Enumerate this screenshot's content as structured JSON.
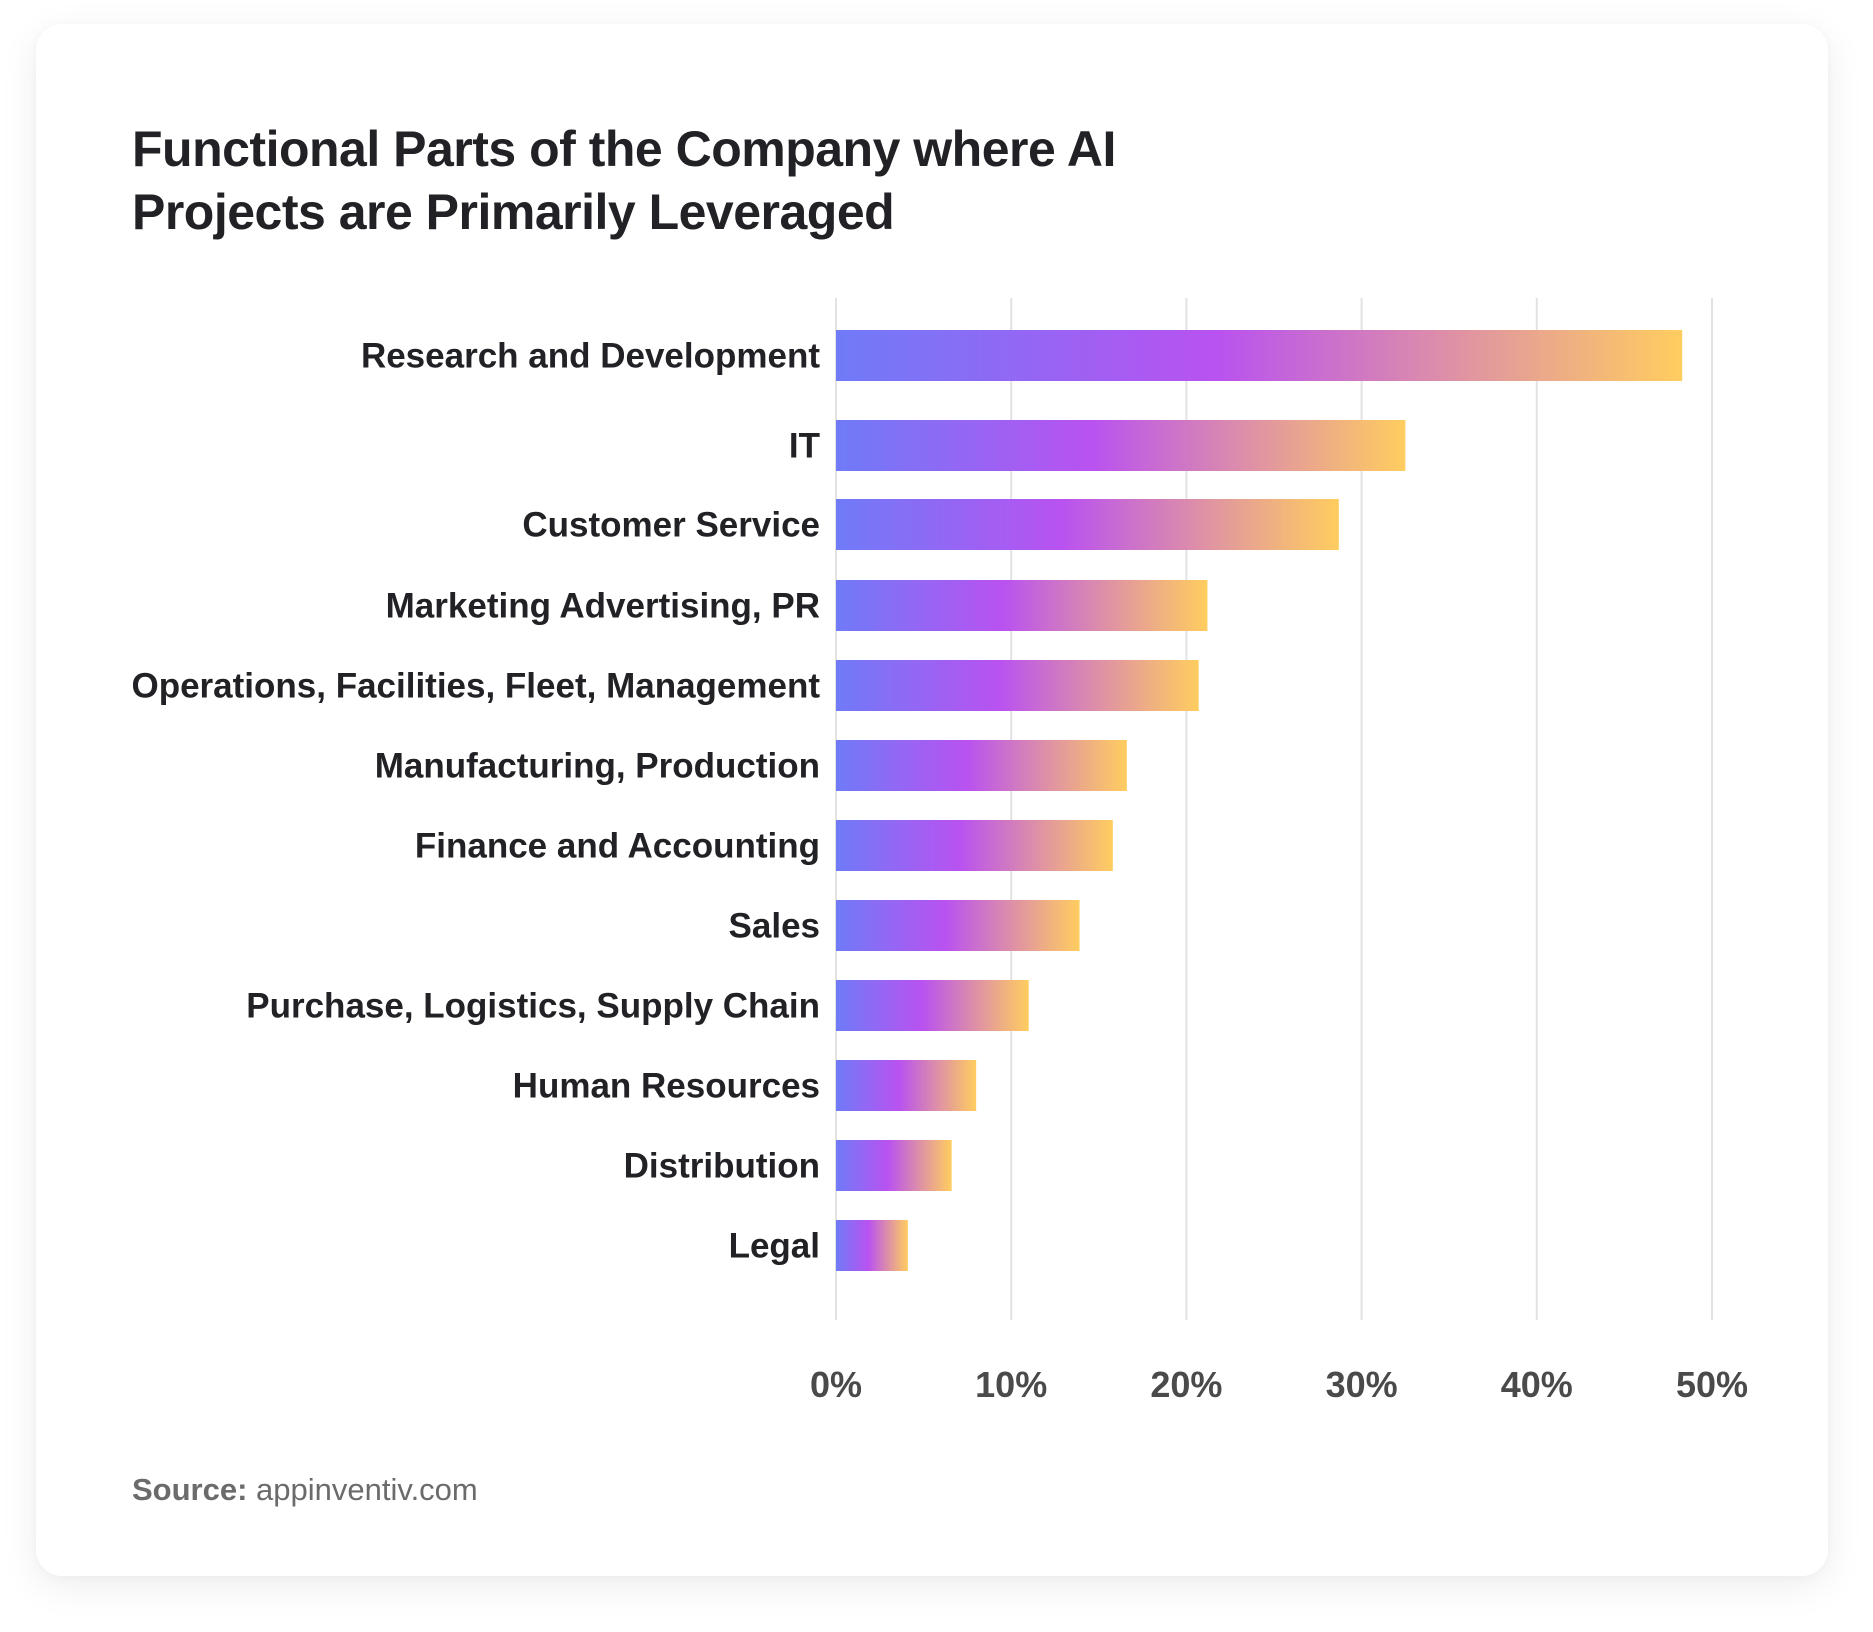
{
  "card": {
    "title_lines": [
      "Functional Parts of the Company where AI",
      "Projects are Primarily Leveraged"
    ],
    "source_label": "Source:",
    "source_value": " appinventiv.com"
  },
  "colors": {
    "gradient_start": "#6f7bf7",
    "gradient_mid": "#b952f0",
    "gradient_pink": "#dd8fa8",
    "gradient_end": "#ffcd5f",
    "gridline": "#e2e2e2",
    "label_text": "#222226",
    "tick_text": "#4a4a4a"
  },
  "chart_data": {
    "type": "bar",
    "orientation": "horizontal",
    "title": "Functional Parts of the Company where AI Projects are Primarily Leveraged",
    "xlabel": "",
    "ylabel": "",
    "categories": [
      "Research and Development",
      "IT",
      "Customer Service",
      "Marketing Advertising, PR",
      "Operations, Facilities, Fleet, Management",
      "Manufacturing, Production",
      "Finance and Accounting",
      "Sales",
      "Purchase, Logistics, Supply Chain",
      "Human Resources",
      "Distribution",
      "Legal"
    ],
    "values": [
      48.3,
      32.5,
      28.7,
      21.2,
      20.7,
      16.6,
      15.8,
      13.9,
      11.0,
      8.0,
      6.6,
      4.1
    ],
    "unit": "%",
    "xlim": [
      0,
      50
    ],
    "xticks": [
      0,
      10,
      20,
      30,
      40,
      50
    ],
    "xtick_labels": [
      "0%",
      "10%",
      "20%",
      "30%",
      "40%",
      "50%"
    ],
    "grid": "vertical",
    "legend": "none"
  }
}
